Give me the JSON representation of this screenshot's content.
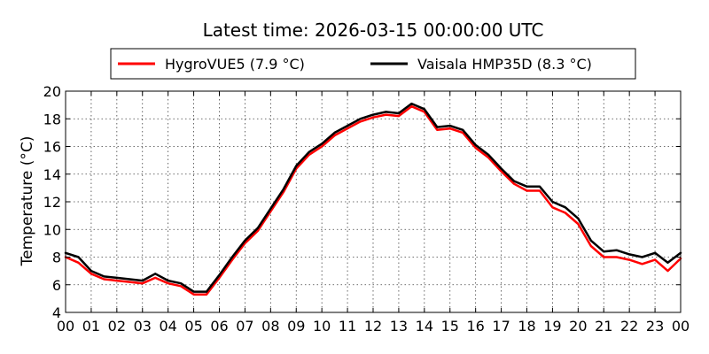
{
  "chart_data": {
    "type": "line",
    "title": "Latest time: 2026-03-15 00:00:00 UTC",
    "ylabel": "Temperature (°C)",
    "xlabel": "",
    "xlim": [
      0,
      24
    ],
    "ylim": [
      4,
      20
    ],
    "x_ticks": [
      0,
      1,
      2,
      3,
      4,
      5,
      6,
      7,
      8,
      9,
      10,
      11,
      12,
      13,
      14,
      15,
      16,
      17,
      18,
      19,
      20,
      21,
      22,
      23,
      24
    ],
    "x_tick_labels": [
      "00",
      "01",
      "02",
      "03",
      "04",
      "05",
      "06",
      "07",
      "08",
      "09",
      "10",
      "11",
      "12",
      "13",
      "14",
      "15",
      "16",
      "17",
      "18",
      "19",
      "20",
      "21",
      "22",
      "23",
      "00"
    ],
    "y_ticks": [
      4,
      6,
      8,
      10,
      12,
      14,
      16,
      18,
      20
    ],
    "y_tick_labels": [
      "4",
      "6",
      "8",
      "10",
      "12",
      "14",
      "16",
      "18",
      "20"
    ],
    "grid": true,
    "legend_position": "top",
    "series": [
      {
        "name": "HygroVUE5 (7.9 °C)",
        "color": "#ff0000",
        "x": [
          0,
          0.5,
          1,
          1.5,
          2,
          2.5,
          3,
          3.5,
          4,
          4.5,
          5,
          5.5,
          6,
          6.5,
          7,
          7.5,
          8,
          8.5,
          9,
          9.5,
          10,
          10.5,
          11,
          11.5,
          12,
          12.5,
          13,
          13.5,
          14,
          14.5,
          15,
          15.5,
          16,
          16.5,
          17,
          17.5,
          18,
          18.5,
          19,
          19.5,
          20,
          20.5,
          21,
          21.5,
          22,
          22.5,
          23,
          23.5,
          24
        ],
        "values": [
          8.0,
          7.6,
          6.8,
          6.4,
          6.3,
          6.2,
          6.1,
          6.5,
          6.1,
          5.9,
          5.3,
          5.3,
          6.5,
          7.8,
          9.0,
          9.9,
          11.3,
          12.7,
          14.4,
          15.4,
          16.0,
          16.8,
          17.3,
          17.8,
          18.1,
          18.3,
          18.2,
          18.9,
          18.5,
          17.2,
          17.3,
          17.0,
          15.9,
          15.2,
          14.2,
          13.3,
          12.8,
          12.8,
          11.6,
          11.2,
          10.4,
          8.8,
          8.0,
          8.0,
          7.8,
          7.5,
          7.8,
          7.0,
          7.9
        ]
      },
      {
        "name": "Vaisala HMP35D (8.3 °C)",
        "color": "#000000",
        "x": [
          0,
          0.5,
          1,
          1.5,
          2,
          2.5,
          3,
          3.5,
          4,
          4.5,
          5,
          5.5,
          6,
          6.5,
          7,
          7.5,
          8,
          8.5,
          9,
          9.5,
          10,
          10.5,
          11,
          11.5,
          12,
          12.5,
          13,
          13.5,
          14,
          14.5,
          15,
          15.5,
          16,
          16.5,
          17,
          17.5,
          18,
          18.5,
          19,
          19.5,
          20,
          20.5,
          21,
          21.5,
          22,
          22.5,
          23,
          23.5,
          24
        ],
        "values": [
          8.3,
          8.0,
          7.0,
          6.6,
          6.5,
          6.4,
          6.3,
          6.8,
          6.3,
          6.1,
          5.5,
          5.5,
          6.7,
          8.0,
          9.2,
          10.1,
          11.5,
          12.9,
          14.6,
          15.6,
          16.2,
          17.0,
          17.5,
          18.0,
          18.3,
          18.5,
          18.4,
          19.1,
          18.7,
          17.4,
          17.5,
          17.2,
          16.1,
          15.4,
          14.4,
          13.5,
          13.1,
          13.1,
          12.0,
          11.6,
          10.8,
          9.2,
          8.4,
          8.5,
          8.2,
          8.0,
          8.3,
          7.6,
          8.3
        ]
      }
    ]
  }
}
